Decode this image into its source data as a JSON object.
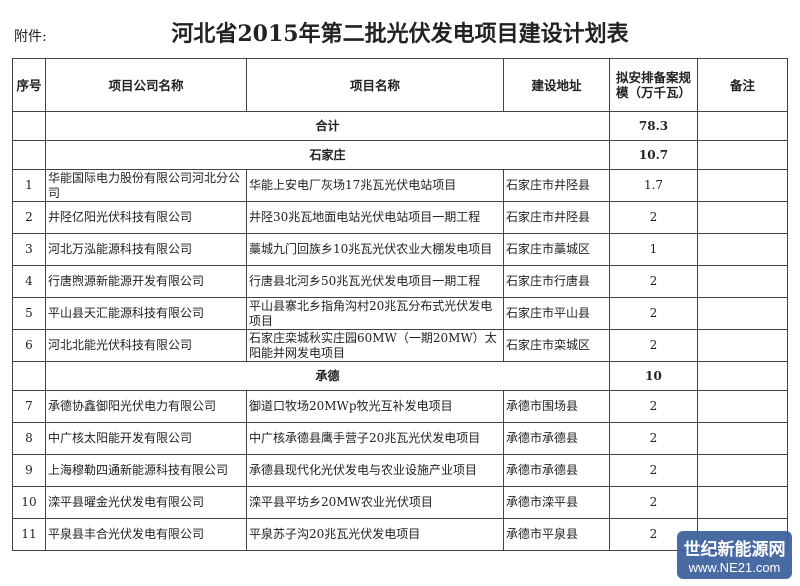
{
  "attachment_label": "附件:",
  "title": "河北省2015年第二批光伏发电项目建设计划表",
  "headers": [
    "序号",
    "项目公司名称",
    "项目名称",
    "建设地址",
    "拟安排备案规模（万千瓦）",
    "备注"
  ],
  "total": {
    "label": "合计",
    "value": "78.3"
  },
  "groups": [
    {
      "name": "石家庄",
      "value": "10.7",
      "rows": [
        {
          "no": "1",
          "company": "华能国际电力股份有限公司河北分公司",
          "project": "华能上安电厂灰场17兆瓦光伏电站项目",
          "location": "石家庄市井陉县",
          "scale": "1.7"
        },
        {
          "no": "2",
          "company": "井陉亿阳光伏科技有限公司",
          "project": "井陉30兆瓦地面电站光伏电站项目一期工程",
          "location": "石家庄市井陉县",
          "scale": "2"
        },
        {
          "no": "3",
          "company": "河北万泓能源科技有限公司",
          "project": "藁城九门回族乡10兆瓦光伏农业大棚发电项目",
          "location": "石家庄市藁城区",
          "scale": "1"
        },
        {
          "no": "4",
          "company": "行唐煦源新能源开发有限公司",
          "project": "行唐县北河乡50兆瓦光伏发电项目一期工程",
          "location": "石家庄市行唐县",
          "scale": "2"
        },
        {
          "no": "5",
          "company": "平山县天汇能源科技有限公司",
          "project": "平山县寨北乡指角沟村20兆瓦分布式光伏发电项目",
          "location": "石家庄市平山县",
          "scale": "2"
        },
        {
          "no": "6",
          "company": "河北北能光伏科技有限公司",
          "project": "石家庄栾城秋实庄园60MW（一期20MW）太阳能并网发电项目",
          "location": "石家庄市栾城区",
          "scale": "2"
        }
      ]
    },
    {
      "name": "承德",
      "value": "10",
      "rows": [
        {
          "no": "7",
          "company": "承德协鑫御阳光伏电力有限公司",
          "project": "御道口牧场20MWp牧光互补发电项目",
          "location": "承德市围场县",
          "scale": "2"
        },
        {
          "no": "8",
          "company": "中广核太阳能开发有限公司",
          "project": "中广核承德县鹰手营子20兆瓦光伏发电项目",
          "location": "承德市承德县",
          "scale": "2"
        },
        {
          "no": "9",
          "company": "上海穆勒四通新能源科技有限公司",
          "project": "承德县现代化光伏发电与农业设施产业项目",
          "location": "承德市承德县",
          "scale": "2"
        },
        {
          "no": "10",
          "company": "滦平县曜金光伏发电有限公司",
          "project": "滦平县平坊乡20MW农业光伏项目",
          "location": "承德市滦平县",
          "scale": "2"
        },
        {
          "no": "11",
          "company": "平泉县丰合光伏发电有限公司",
          "project": "平泉苏子沟20兆瓦光伏发电项目",
          "location": "承德市平泉县",
          "scale": "2"
        }
      ]
    }
  ],
  "watermark": {
    "name": "世纪新能源网",
    "url": "www.NE21.com",
    "color": "#3a5f9c"
  }
}
